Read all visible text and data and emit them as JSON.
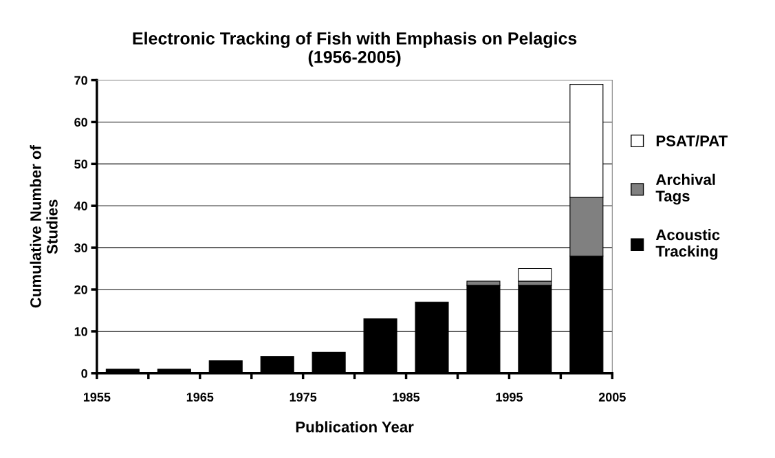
{
  "chart_data": {
    "type": "bar",
    "stacked": true,
    "title": "Electronic Tracking of Fish with Emphasis on Pelagics\n(1956-2005)",
    "xlabel": "Publication Year",
    "ylabel": "Cumulative Number of\nStudies",
    "x": [
      1957.5,
      1962.5,
      1967.5,
      1972.5,
      1977.5,
      1982.5,
      1987.5,
      1992.5,
      1997.5,
      2002.5
    ],
    "series": [
      {
        "name": "Acoustic\nTracking",
        "color": "#000000",
        "values": [
          1,
          1,
          3,
          4,
          5,
          13,
          17,
          21,
          21,
          28
        ]
      },
      {
        "name": "Archival\nTags",
        "color": "#808080",
        "values": [
          null,
          null,
          null,
          null,
          null,
          null,
          null,
          1,
          1,
          14
        ]
      },
      {
        "name": "PSAT/PAT",
        "color": "#ffffff",
        "values": [
          null,
          null,
          null,
          null,
          null,
          null,
          null,
          null,
          3,
          27
        ]
      }
    ],
    "xlim": [
      1955,
      2005
    ],
    "xticks": [
      1955,
      {
        "value": 1960,
        "label": null
      },
      1965,
      {
        "value": 1970,
        "label": null
      },
      1975,
      {
        "value": 1980,
        "label": null
      },
      1985,
      {
        "value": 1990,
        "label": null
      },
      1995,
      {
        "value": 2000,
        "label": null
      },
      2005
    ],
    "ylim": [
      0,
      70
    ],
    "yticks": [
      0,
      10,
      20,
      30,
      40,
      50,
      60,
      70
    ],
    "grid": "y",
    "legend": "right"
  }
}
